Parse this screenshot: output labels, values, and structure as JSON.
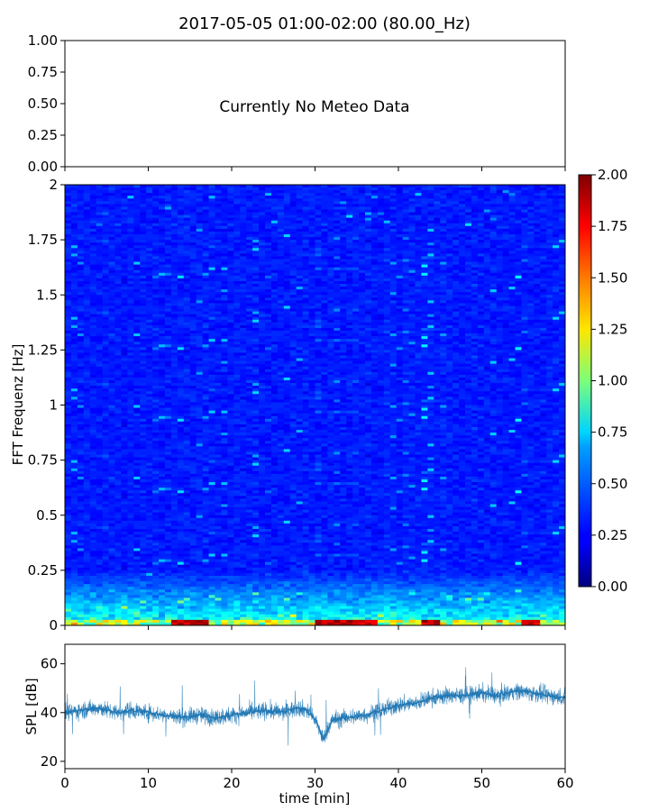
{
  "figure_title": "2017-05-05 01:00-02:00 (80.00_Hz)",
  "chart_data": [
    {
      "type": "line",
      "title": "2017-05-05 01:00-02:00 (80.00_Hz)",
      "annotation": "Currently No Meteo Data",
      "ylim": [
        0,
        1
      ],
      "y_ticks": [
        "0.00",
        "0.25",
        "0.50",
        "0.75",
        "1.00"
      ],
      "series": []
    },
    {
      "type": "heatmap",
      "ylabel": "FFT Frequenz [Hz]",
      "xlim": [
        0,
        60
      ],
      "ylim": [
        0,
        2
      ],
      "y_ticks": [
        "0",
        "0.25",
        "0.5",
        "0.75",
        "1",
        "1.25",
        "1.5",
        "1.75",
        "2"
      ],
      "colormap": "jet",
      "colorbar": {
        "range": [
          0,
          2
        ],
        "ticks": [
          "0.00",
          "0.25",
          "0.50",
          "0.75",
          "1.00",
          "1.25",
          "1.50",
          "1.75",
          "2.00"
        ]
      },
      "pattern": {
        "background_level": 0.3,
        "low_frequency_band_hz": 0.25,
        "low_frequency_level": 0.9,
        "near_zero_peaks_min": [
          14,
          16,
          31,
          33,
          36,
          44,
          56
        ],
        "near_zero_peak_level": 2.0
      }
    },
    {
      "type": "line",
      "xlabel": "time [min]",
      "ylabel": "SPL [dB]",
      "xlim": [
        0,
        60
      ],
      "ylim": [
        17,
        68
      ],
      "x_ticks": [
        "0",
        "10",
        "20",
        "30",
        "40",
        "50",
        "60"
      ],
      "y_ticks": [
        "20",
        "40",
        "60"
      ],
      "series": [
        {
          "color": "#1f77b4",
          "x": [
            0,
            2,
            4,
            6,
            8,
            10,
            12,
            14,
            16,
            18,
            20,
            22,
            24,
            26,
            28,
            29,
            30,
            31,
            32,
            34,
            36,
            38,
            40,
            42,
            44,
            46,
            48,
            50,
            52,
            54,
            56,
            58,
            60
          ],
          "values": [
            40,
            41,
            42,
            40,
            41,
            40,
            39,
            38,
            39,
            38,
            39,
            40,
            41,
            40,
            42,
            41,
            37,
            29,
            37,
            38,
            39,
            41,
            43,
            44,
            46,
            47,
            47,
            48,
            47,
            49,
            48,
            47,
            46
          ],
          "spread": 5
        }
      ]
    }
  ]
}
